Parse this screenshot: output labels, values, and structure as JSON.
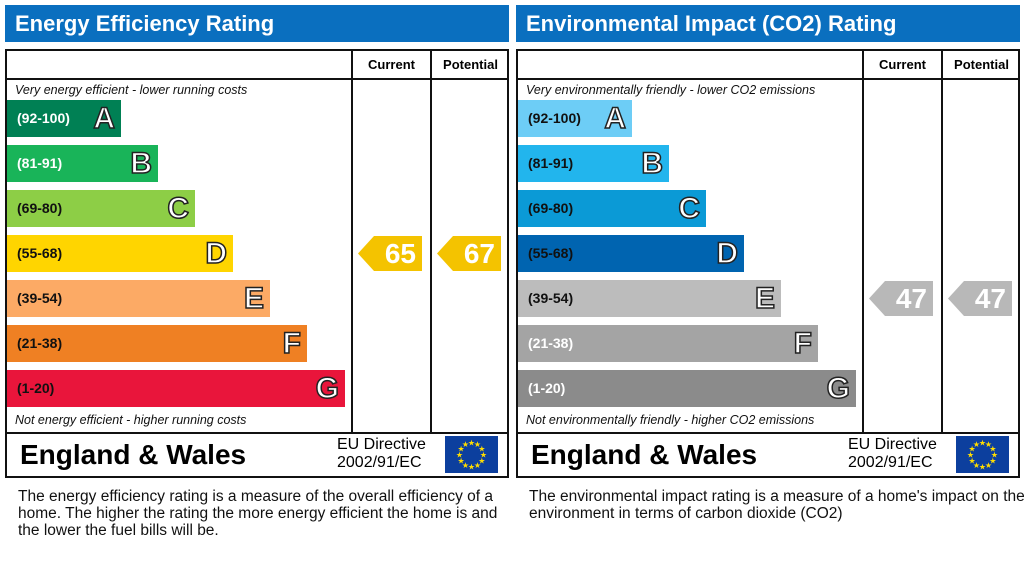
{
  "panels": [
    {
      "title": "Energy Efficiency Rating",
      "current_label": "Current",
      "potential_label": "Potential",
      "top_note": "Very energy efficient - lower running costs",
      "bottom_note": "Not energy efficient - higher running costs",
      "region": "England & Wales",
      "directive_line1": "EU Directive",
      "directive_line2": "2002/91/EC",
      "description": "The energy efficiency rating is a measure of the overall efficiency of a home.  The higher the rating the more energy efficient the home is and the lower the fuel bills will be.",
      "bands": [
        {
          "range": "(92-100)",
          "letter": "A",
          "color": "#008054",
          "text": "#fff"
        },
        {
          "range": "(81-91)",
          "letter": "B",
          "color": "#19b459",
          "text": "#fff"
        },
        {
          "range": "(69-80)",
          "letter": "C",
          "color": "#8dce46",
          "text": "#111"
        },
        {
          "range": "(55-68)",
          "letter": "D",
          "color": "#ffd500",
          "text": "#111"
        },
        {
          "range": "(39-54)",
          "letter": "E",
          "color": "#fcaa65",
          "text": "#111"
        },
        {
          "range": "(21-38)",
          "letter": "F",
          "color": "#ef8023",
          "text": "#111"
        },
        {
          "range": "(1-20)",
          "letter": "G",
          "color": "#e9153b",
          "text": "#111"
        }
      ],
      "current": {
        "value": "65",
        "band": "D",
        "color": "#f4c300"
      },
      "potential": {
        "value": "67",
        "band": "D",
        "color": "#f4c300"
      }
    },
    {
      "title": "Environmental Impact (CO2) Rating",
      "current_label": "Current",
      "potential_label": "Potential",
      "top_note": "Very environmentally friendly - lower CO2 emissions",
      "bottom_note": "Not environmentally friendly - higher CO2 emissions",
      "region": "England & Wales",
      "directive_line1": "EU Directive",
      "directive_line2": "2002/91/EC",
      "description": "The environmental impact rating is a measure of a home's impact on the environment in terms of carbon dioxide (CO2)",
      "bands": [
        {
          "range": "(92-100)",
          "letter": "A",
          "color": "#6dcdf6",
          "text": "#111"
        },
        {
          "range": "(81-91)",
          "letter": "B",
          "color": "#22b5ed",
          "text": "#111"
        },
        {
          "range": "(69-80)",
          "letter": "C",
          "color": "#0b9ad6",
          "text": "#111"
        },
        {
          "range": "(55-68)",
          "letter": "D",
          "color": "#0064b0",
          "text": "#111"
        },
        {
          "range": "(39-54)",
          "letter": "E",
          "color": "#bcbcbc",
          "text": "#111"
        },
        {
          "range": "(21-38)",
          "letter": "F",
          "color": "#a4a4a4",
          "text": "#fff"
        },
        {
          "range": "(1-20)",
          "letter": "G",
          "color": "#8b8b8b",
          "text": "#fff"
        }
      ],
      "current": {
        "value": "47",
        "band": "E",
        "color": "#b8b8b8"
      },
      "potential": {
        "value": "47",
        "band": "E",
        "color": "#b8b8b8"
      }
    }
  ]
}
